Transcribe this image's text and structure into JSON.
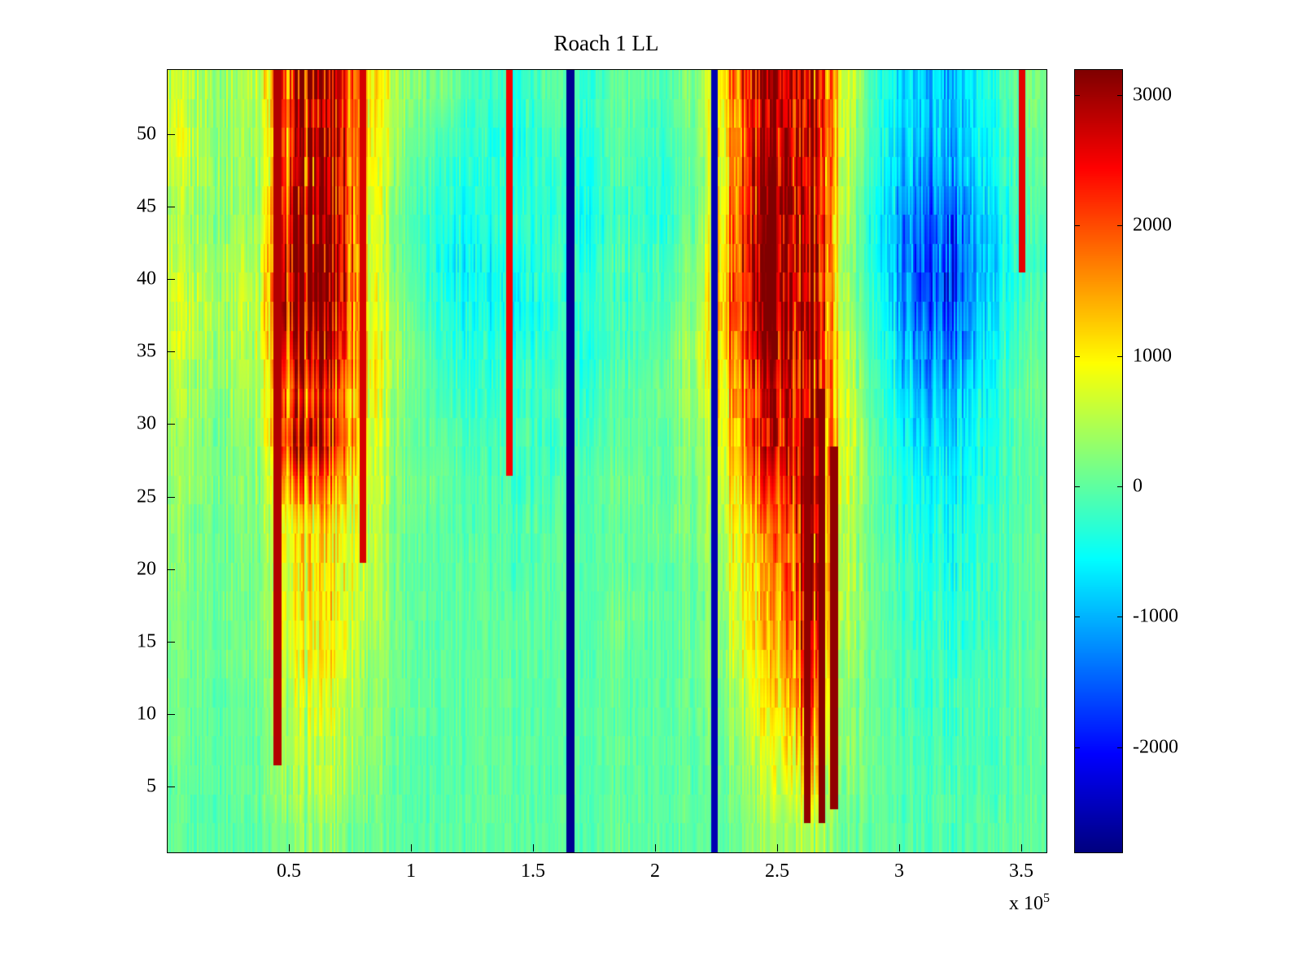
{
  "title": "Roach 1 LL",
  "axes": {
    "x_range": [
      0,
      3.6
    ],
    "x_tick_values": [
      0.5,
      1,
      1.5,
      2,
      2.5,
      3,
      3.5
    ],
    "x_tick_labels": [
      "0.5",
      "1",
      "1.5",
      "2",
      "2.5",
      "3",
      "3.5"
    ],
    "x_scale_base": "x 10",
    "x_scale_exponent": "5",
    "y_range": [
      0.5,
      54.5
    ],
    "y_tick_values": [
      5,
      10,
      15,
      20,
      25,
      30,
      35,
      40,
      45,
      50
    ],
    "y_tick_labels": [
      "5",
      "10",
      "15",
      "20",
      "25",
      "30",
      "35",
      "40",
      "45",
      "50"
    ]
  },
  "colorbar": {
    "tick_values": [
      3000,
      2000,
      1000,
      0,
      -1000,
      -2000
    ],
    "tick_labels": [
      "3000",
      "2000",
      "1000",
      "0",
      "-1000",
      "-2000"
    ],
    "vmin": -2800,
    "vmax": 3200,
    "colormap": "jet"
  },
  "chart_data": {
    "type": "heatmap",
    "title": "Roach 1 LL",
    "colormap": "jet",
    "clim": [
      -2800,
      3200
    ],
    "x_range": [
      0,
      360000
    ],
    "x_bin_width": 15000,
    "y_range": [
      0,
      54
    ],
    "y_bin_height": 3,
    "rows_order": "top-to-bottom",
    "values": [
      [
        500,
        400,
        600,
        2500,
        2900,
        1200,
        300,
        200,
        -200,
        -300,
        0,
        -200,
        100,
        -100,
        300,
        1800,
        2600,
        2900,
        800,
        -400,
        -800,
        -900,
        -300,
        200
      ],
      [
        600,
        300,
        500,
        2400,
        2900,
        1100,
        200,
        -100,
        -300,
        -400,
        -100,
        -300,
        0,
        -200,
        200,
        1600,
        2700,
        3000,
        700,
        -500,
        -900,
        -1000,
        -400,
        100
      ],
      [
        500,
        400,
        400,
        2500,
        3000,
        1000,
        100,
        -200,
        -400,
        -300,
        -200,
        -300,
        -100,
        -300,
        100,
        1700,
        2900,
        3000,
        600,
        -600,
        -1100,
        -1200,
        -500,
        0
      ],
      [
        400,
        300,
        500,
        2800,
        3100,
        900,
        0,
        -300,
        -500,
        -200,
        -300,
        -400,
        -200,
        -300,
        200,
        1800,
        3000,
        3100,
        500,
        -700,
        -1400,
        -1500,
        -600,
        -100
      ],
      [
        500,
        400,
        600,
        3000,
        3200,
        800,
        100,
        -400,
        -600,
        -400,
        -200,
        -300,
        -100,
        -200,
        300,
        1900,
        3100,
        3100,
        400,
        -600,
        -1600,
        -1700,
        -700,
        -200
      ],
      [
        600,
        500,
        700,
        3100,
        3200,
        900,
        200,
        -300,
        -500,
        -500,
        -300,
        -200,
        -200,
        -100,
        400,
        2000,
        3100,
        3200,
        500,
        -500,
        -1500,
        -1600,
        -600,
        -100
      ],
      [
        500,
        400,
        600,
        2600,
        2800,
        1000,
        300,
        -200,
        -400,
        -300,
        -200,
        -300,
        -100,
        0,
        500,
        1800,
        2800,
        3100,
        600,
        -400,
        -1200,
        -1300,
        -500,
        0
      ],
      [
        400,
        300,
        500,
        2000,
        2200,
        900,
        200,
        -100,
        -300,
        -200,
        -100,
        -200,
        0,
        100,
        400,
        1500,
        2400,
        3000,
        700,
        -300,
        -900,
        -1000,
        -400,
        100
      ],
      [
        300,
        200,
        400,
        2600,
        2600,
        800,
        100,
        0,
        -200,
        -100,
        -200,
        -100,
        0,
        0,
        300,
        1400,
        2500,
        3000,
        800,
        -200,
        -700,
        -800,
        -300,
        0
      ],
      [
        300,
        200,
        300,
        1600,
        1800,
        700,
        200,
        100,
        -100,
        -200,
        -100,
        0,
        100,
        0,
        200,
        1200,
        2000,
        2900,
        700,
        -100,
        -500,
        -600,
        -300,
        0
      ],
      [
        200,
        100,
        300,
        1000,
        1200,
        600,
        100,
        0,
        -100,
        -100,
        0,
        0,
        0,
        100,
        200,
        900,
        1500,
        2800,
        600,
        -100,
        -400,
        -500,
        -200,
        0
      ],
      [
        200,
        100,
        200,
        900,
        1100,
        500,
        100,
        0,
        0,
        -100,
        0,
        0,
        0,
        0,
        100,
        800,
        1300,
        2700,
        500,
        0,
        -300,
        -400,
        -200,
        0
      ],
      [
        100,
        100,
        200,
        900,
        1000,
        500,
        100,
        0,
        0,
        0,
        0,
        0,
        100,
        0,
        100,
        700,
        1200,
        2600,
        500,
        0,
        -300,
        -300,
        -200,
        0
      ],
      [
        100,
        100,
        200,
        800,
        1000,
        400,
        100,
        0,
        0,
        0,
        0,
        0,
        0,
        0,
        100,
        600,
        1100,
        2400,
        400,
        0,
        -200,
        -300,
        -100,
        0
      ],
      [
        100,
        0,
        100,
        600,
        800,
        300,
        100,
        0,
        0,
        0,
        0,
        0,
        0,
        0,
        100,
        400,
        900,
        2000,
        300,
        0,
        -200,
        -200,
        -100,
        0
      ],
      [
        100,
        0,
        100,
        500,
        600,
        300,
        0,
        0,
        0,
        0,
        0,
        0,
        0,
        0,
        0,
        300,
        700,
        1600,
        300,
        0,
        -100,
        -200,
        -100,
        0
      ],
      [
        0,
        0,
        100,
        400,
        500,
        200,
        0,
        0,
        0,
        0,
        0,
        0,
        0,
        0,
        0,
        200,
        500,
        1000,
        200,
        0,
        -100,
        -100,
        -100,
        0
      ],
      [
        0,
        0,
        0,
        200,
        300,
        100,
        0,
        0,
        0,
        0,
        0,
        0,
        0,
        0,
        0,
        100,
        300,
        500,
        100,
        0,
        -100,
        -100,
        0,
        0
      ]
    ],
    "vertical_lines": [
      {
        "x": 45000,
        "value": 2900,
        "y_min": 6,
        "y_max": 54
      },
      {
        "x": 80000,
        "value": 2700,
        "y_min": 20,
        "y_max": 54
      },
      {
        "x": 140000,
        "value": 2500,
        "y_min": 26,
        "y_max": 54
      },
      {
        "x": 165000,
        "value": -2700,
        "y_min": 0,
        "y_max": 54
      },
      {
        "x": 224000,
        "value": -2500,
        "y_min": 0,
        "y_max": 54
      },
      {
        "x": 262000,
        "value": 3100,
        "y_min": 2,
        "y_max": 30
      },
      {
        "x": 268000,
        "value": 3150,
        "y_min": 2,
        "y_max": 32
      },
      {
        "x": 273000,
        "value": 3100,
        "y_min": 3,
        "y_max": 28
      },
      {
        "x": 350000,
        "value": 2600,
        "y_min": 40,
        "y_max": 54
      }
    ]
  }
}
